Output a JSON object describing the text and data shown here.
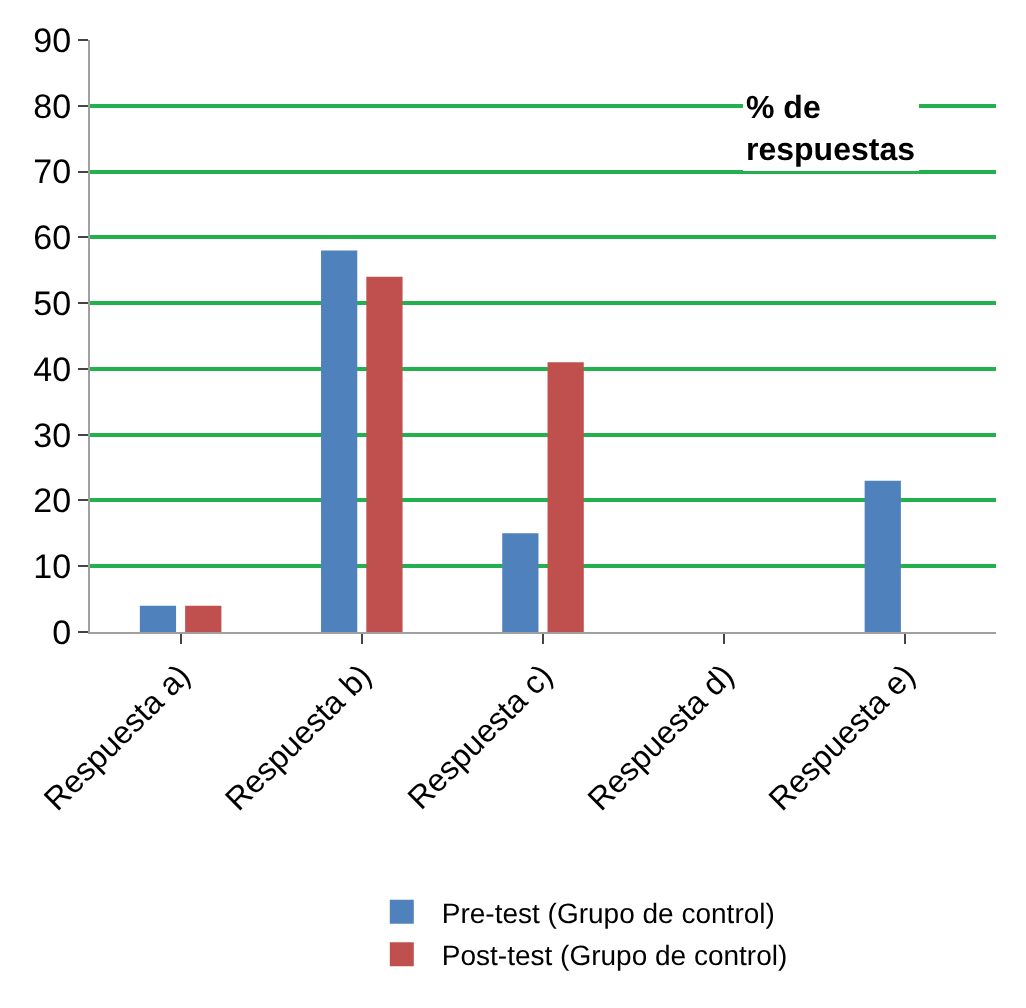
{
  "chart_data": {
    "type": "bar",
    "categories": [
      "Respuesta a)",
      "Respuesta b)",
      "Respuesta c)",
      "Respuesta d)",
      "Respuesta e)"
    ],
    "series": [
      {
        "name": "Pre-test (Grupo de control)",
        "color": "#4f81bd",
        "values": [
          4,
          58,
          15,
          0,
          23
        ]
      },
      {
        "name": "Post-test (Grupo de control)",
        "color": "#c0504d",
        "values": [
          4,
          54,
          41,
          0,
          0
        ]
      }
    ],
    "annotations": [
      "% de\nrespuestas"
    ],
    "ylim": [
      0,
      90
    ],
    "yticks": [
      0,
      10,
      20,
      30,
      40,
      50,
      60,
      70,
      80,
      90
    ],
    "grid": "y",
    "legend": "bottom"
  }
}
